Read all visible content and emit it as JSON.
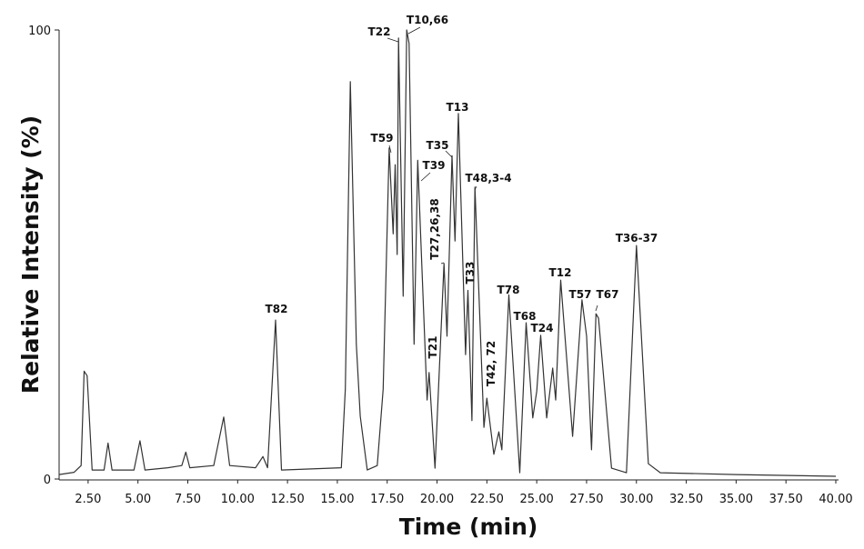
{
  "chart_data": {
    "type": "line",
    "xlabel": "Time (min)",
    "ylabel": "Relative Intensity (%)",
    "color": "#333333",
    "xlim": [
      1,
      40
    ],
    "ylim": [
      0,
      100
    ],
    "xticks": [
      {
        "value": 2.5,
        "label": "2.50"
      },
      {
        "value": 5,
        "label": "5.00"
      },
      {
        "value": 7.5,
        "label": "7.50"
      },
      {
        "value": 10,
        "label": "10.00"
      },
      {
        "value": 12.5,
        "label": "12.50"
      },
      {
        "value": 15,
        "label": "15.00"
      },
      {
        "value": 17.5,
        "label": "17.50"
      },
      {
        "value": 20,
        "label": "20.00"
      },
      {
        "value": 22.5,
        "label": "22.50"
      },
      {
        "value": 25,
        "label": "25.00"
      },
      {
        "value": 27.5,
        "label": "27.50"
      },
      {
        "value": 30,
        "label": "30.00"
      },
      {
        "value": 32.5,
        "label": "32.50"
      },
      {
        "value": 35,
        "label": "35.00"
      },
      {
        "value": 37.5,
        "label": "37.50"
      },
      {
        "value": 40,
        "label": "40.00"
      }
    ],
    "yticks": [
      0,
      100
    ],
    "x": [
      1.04,
      1.8,
      2.15,
      2.3,
      2.45,
      2.7,
      3.3,
      3.5,
      3.7,
      4.8,
      5.1,
      5.35,
      6.5,
      7.2,
      7.4,
      7.6,
      8.8,
      9.3,
      9.6,
      10.9,
      11.27,
      11.5,
      11.9,
      12.2,
      15.2,
      15.4,
      15.65,
      15.95,
      16.15,
      16.5,
      17.0,
      17.3,
      17.6,
      17.8,
      17.9,
      18.0,
      18.07,
      18.3,
      18.48,
      18.6,
      18.85,
      19.03,
      19.5,
      19.6,
      19.9,
      20.35,
      20.5,
      20.75,
      20.9,
      21.07,
      21.43,
      21.55,
      21.75,
      21.9,
      22.35,
      22.5,
      22.85,
      23.1,
      23.25,
      23.6,
      24.15,
      24.47,
      24.8,
      25.0,
      25.2,
      25.5,
      25.8,
      25.95,
      26.2,
      26.8,
      27.27,
      27.5,
      27.75,
      27.97,
      28.1,
      28.75,
      29.5,
      30.0,
      30.6,
      31.2,
      35.0,
      40.0
    ],
    "values": [
      1.0,
      1.5,
      3,
      24,
      23,
      2,
      2,
      8,
      2,
      2,
      8.5,
      2,
      2.5,
      3,
      6,
      2.5,
      3,
      13.8,
      3,
      2.5,
      5,
      2.5,
      35.4,
      2,
      2.5,
      20,
      88.5,
      30,
      14,
      2,
      3,
      20,
      73.7,
      54.6,
      70,
      50,
      98.2,
      40.7,
      100,
      97,
      30,
      71,
      17.6,
      23.7,
      2.4,
      48,
      31.8,
      72,
      53,
      81.4,
      27.7,
      42,
      13,
      65,
      11.5,
      18,
      5.5,
      10.5,
      6.5,
      41,
      1.4,
      34.8,
      13.6,
      19.6,
      32,
      13.6,
      24.7,
      17.6,
      44.3,
      9.5,
      39.9,
      31.8,
      6.5,
      36.8,
      35.8,
      2.4,
      1.4,
      52,
      3.4,
      1.4,
      1.0,
      0.6
    ],
    "annotations": [
      "T82",
      "T22",
      "T10,66",
      "T59",
      "T35",
      "T13",
      "T39",
      "T48,3-4",
      "T27,26,38",
      "T33",
      "T21",
      "T42, 72",
      "T78",
      "T68",
      "T24",
      "T12",
      "T57",
      "T67",
      "T36-37"
    ]
  }
}
